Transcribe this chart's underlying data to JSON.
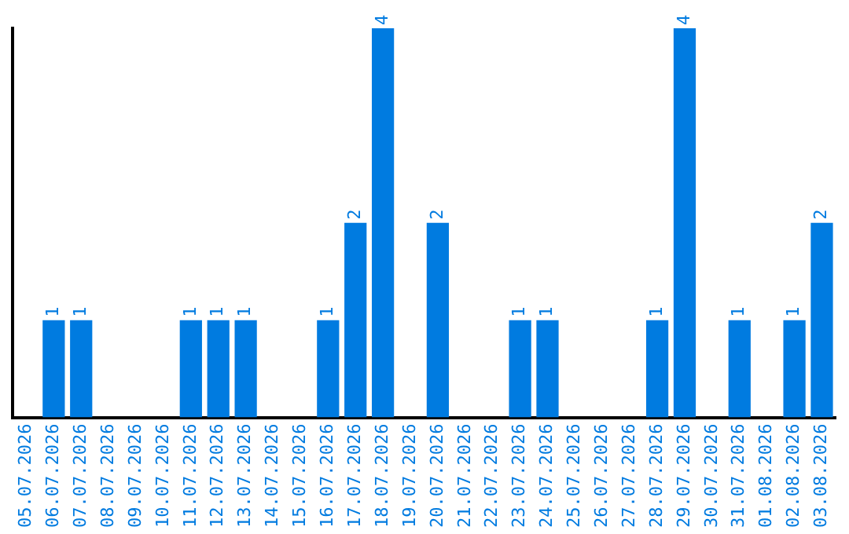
{
  "chart_data": {
    "type": "bar",
    "categories": [
      "05.07.2026",
      "06.07.2026",
      "07.07.2026",
      "08.07.2026",
      "09.07.2026",
      "10.07.2026",
      "11.07.2026",
      "12.07.2026",
      "13.07.2026",
      "14.07.2026",
      "15.07.2026",
      "16.07.2026",
      "17.07.2026",
      "18.07.2026",
      "19.07.2026",
      "20.07.2026",
      "21.07.2026",
      "22.07.2026",
      "23.07.2026",
      "24.07.2026",
      "25.07.2026",
      "26.07.2026",
      "27.07.2026",
      "28.07.2026",
      "29.07.2026",
      "30.07.2026",
      "31.07.2026",
      "01.08.2026",
      "02.08.2026",
      "03.08.2026"
    ],
    "values": [
      0,
      1,
      1,
      0,
      0,
      0,
      1,
      1,
      1,
      0,
      0,
      1,
      2,
      4,
      0,
      2,
      0,
      0,
      1,
      1,
      0,
      0,
      0,
      1,
      4,
      0,
      1,
      0,
      1,
      2
    ],
    "value_labels": [
      null,
      "1",
      "1",
      null,
      null,
      null,
      "1",
      "1",
      "1",
      null,
      null,
      "1",
      "2",
      "4",
      null,
      "2",
      null,
      null,
      "1",
      "1",
      null,
      null,
      null,
      "1",
      "4",
      null,
      "1",
      null,
      "1",
      "2"
    ],
    "color": "#007be0",
    "grid": false,
    "legend": false,
    "tick_labels": "x"
  }
}
